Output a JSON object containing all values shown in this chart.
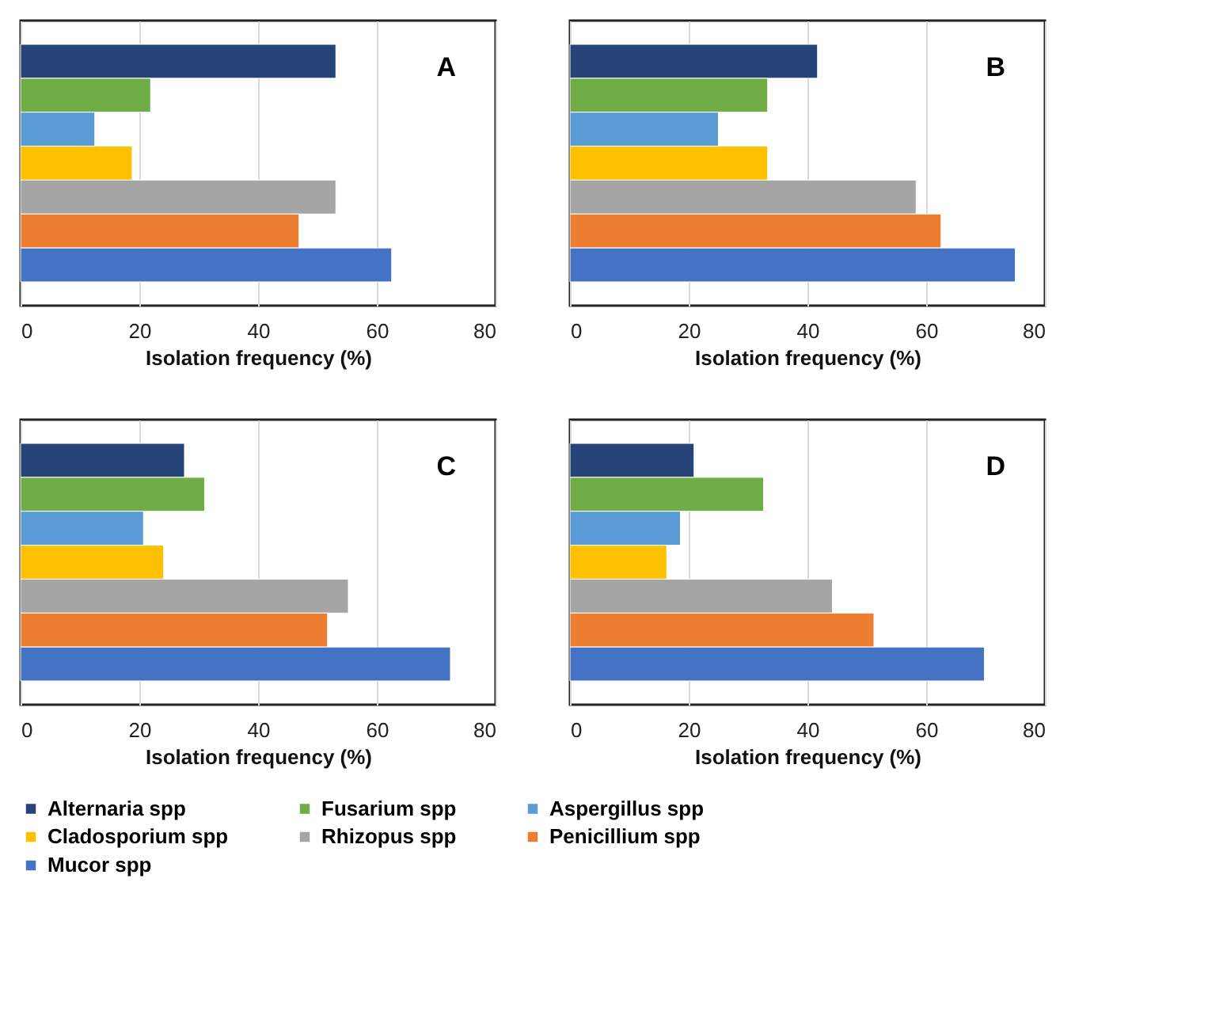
{
  "chart_data": [
    {
      "type": "bar",
      "orientation": "horizontal",
      "annotations": [
        "A"
      ],
      "xlabel": "Isolation frequency (%)",
      "categories": [
        null
      ],
      "xlim": [
        0,
        80
      ],
      "xticks": [
        0,
        20,
        40,
        60,
        80
      ],
      "grid": "x",
      "tick_labels": "x",
      "legend": "bottom",
      "series": [
        {
          "name": "Alternaria spp",
          "color": "#264478",
          "values": [
            53.1
          ]
        },
        {
          "name": "Fusarium spp",
          "color": "#70ad47",
          "values": [
            21.9
          ]
        },
        {
          "name": "Aspergillus spp",
          "color": "#5b9bd5",
          "values": [
            12.5
          ]
        },
        {
          "name": "Cladosporium spp",
          "color": "#ffc000",
          "values": [
            18.8
          ]
        },
        {
          "name": "Rhizopus spp",
          "color": "#a5a5a5",
          "values": [
            53.1
          ]
        },
        {
          "name": "Penicillium spp",
          "color": "#ed7d31",
          "values": [
            46.9
          ]
        },
        {
          "name": "Mucor spp",
          "color": "#4472c4",
          "values": [
            62.5
          ]
        }
      ]
    },
    {
      "type": "bar",
      "orientation": "horizontal",
      "annotations": [
        "B"
      ],
      "xlabel": "Isolation frequency (%)",
      "categories": [
        null
      ],
      "xlim": [
        0,
        80
      ],
      "xticks": [
        0,
        20,
        40,
        60,
        80
      ],
      "grid": "x",
      "tick_labels": "x",
      "series": [
        {
          "name": "Alternaria spp",
          "color": "#264478",
          "values": [
            41.7
          ]
        },
        {
          "name": "Fusarium spp",
          "color": "#70ad47",
          "values": [
            33.3
          ]
        },
        {
          "name": "Aspergillus spp",
          "color": "#5b9bd5",
          "values": [
            25.0
          ]
        },
        {
          "name": "Cladosporium spp",
          "color": "#ffc000",
          "values": [
            33.3
          ]
        },
        {
          "name": "Rhizopus spp",
          "color": "#a5a5a5",
          "values": [
            58.3
          ]
        },
        {
          "name": "Penicillium spp",
          "color": "#ed7d31",
          "values": [
            62.5
          ]
        },
        {
          "name": "Mucor spp",
          "color": "#4472c4",
          "values": [
            75.0
          ]
        }
      ]
    },
    {
      "type": "bar",
      "orientation": "horizontal",
      "annotations": [
        "C"
      ],
      "xlabel": "Isolation frequency (%)",
      "categories": [
        null
      ],
      "xlim": [
        0,
        80
      ],
      "xticks": [
        0,
        20,
        40,
        60,
        80
      ],
      "grid": "x",
      "tick_labels": "x",
      "series": [
        {
          "name": "Alternaria spp",
          "color": "#264478",
          "values": [
            27.6
          ]
        },
        {
          "name": "Fusarium spp",
          "color": "#70ad47",
          "values": [
            31.0
          ]
        },
        {
          "name": "Aspergillus spp",
          "color": "#5b9bd5",
          "values": [
            20.7
          ]
        },
        {
          "name": "Cladosporium spp",
          "color": "#ffc000",
          "values": [
            24.1
          ]
        },
        {
          "name": "Rhizopus spp",
          "color": "#a5a5a5",
          "values": [
            55.2
          ]
        },
        {
          "name": "Penicillium spp",
          "color": "#ed7d31",
          "values": [
            51.7
          ]
        },
        {
          "name": "Mucor spp",
          "color": "#4472c4",
          "values": [
            72.4
          ]
        }
      ]
    },
    {
      "type": "bar",
      "orientation": "horizontal",
      "annotations": [
        "D"
      ],
      "xlabel": "Isolation frequency (%)",
      "categories": [
        null
      ],
      "xlim": [
        0,
        80
      ],
      "xticks": [
        0,
        20,
        40,
        60,
        80
      ],
      "grid": "x",
      "tick_labels": "x",
      "series": [
        {
          "name": "Alternaria spp",
          "color": "#264478",
          "values": [
            20.9
          ]
        },
        {
          "name": "Fusarium spp",
          "color": "#70ad47",
          "values": [
            32.6
          ]
        },
        {
          "name": "Aspergillus spp",
          "color": "#5b9bd5",
          "values": [
            18.6
          ]
        },
        {
          "name": "Cladosporium spp",
          "color": "#ffc000",
          "values": [
            16.3
          ]
        },
        {
          "name": "Rhizopus spp",
          "color": "#a5a5a5",
          "values": [
            44.2
          ]
        },
        {
          "name": "Penicillium spp",
          "color": "#ed7d31",
          "values": [
            51.2
          ]
        },
        {
          "name": "Mucor spp",
          "color": "#4472c4",
          "values": [
            69.8
          ]
        }
      ]
    }
  ]
}
